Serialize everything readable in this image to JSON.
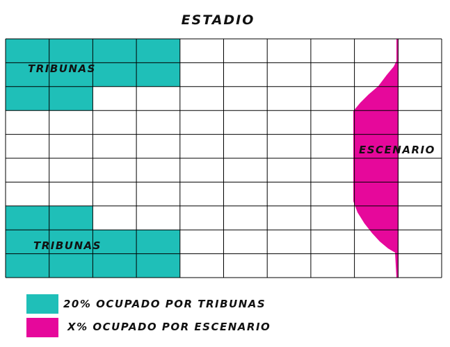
{
  "title": "ESTADIO",
  "grid": {
    "columns": 10,
    "rows": 10
  },
  "labels": {
    "tribunas_top": "TRIBUNAS",
    "tribunas_bottom": "TRIBUNAS",
    "escenario": "ESCENARIO"
  },
  "legend": [
    {
      "text": "20% OCUPADO POR TRIBUNAS",
      "color": "#1fbfb8"
    },
    {
      "text": "X% OCUPADO POR ESCENARIO",
      "color": "#e6089b"
    }
  ],
  "colors": {
    "tribunas": "#1fbfb8",
    "escenario": "#e6089b",
    "grid_line": "#000000",
    "empty_cell": "#ffffff"
  },
  "tribunas_cells": [
    [
      0,
      0
    ],
    [
      0,
      1
    ],
    [
      0,
      2
    ],
    [
      0,
      3
    ],
    [
      1,
      0
    ],
    [
      1,
      1
    ],
    [
      1,
      2
    ],
    [
      1,
      3
    ],
    [
      2,
      0
    ],
    [
      2,
      1
    ],
    [
      7,
      0
    ],
    [
      7,
      1
    ],
    [
      8,
      0
    ],
    [
      8,
      1
    ],
    [
      8,
      2
    ],
    [
      8,
      3
    ],
    [
      9,
      0
    ],
    [
      9,
      1
    ],
    [
      9,
      2
    ],
    [
      9,
      3
    ]
  ]
}
